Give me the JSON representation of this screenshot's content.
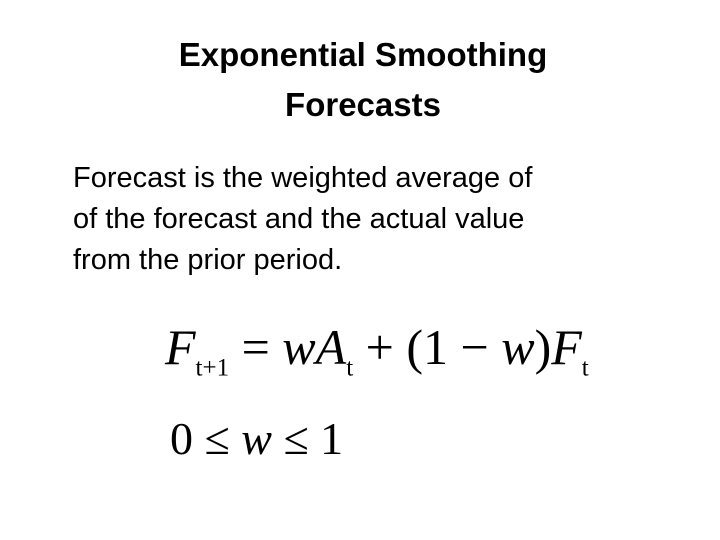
{
  "title": {
    "lines": [
      "Exponential Smoothing",
      "Forecasts"
    ]
  },
  "body": {
    "lines": [
      "Forecast is the weighted average of",
      "of the forecast and the actual value",
      "from the prior period."
    ]
  },
  "formula": {
    "tokens": [
      {
        "text": "F",
        "style": "italic"
      },
      {
        "text": "t+1",
        "style": "subscript"
      },
      {
        "text": " = ",
        "style": "upright"
      },
      {
        "text": "wA",
        "style": "italic"
      },
      {
        "text": "t",
        "style": "subscript"
      },
      {
        "text": " + (1 − ",
        "style": "upright"
      },
      {
        "text": "w",
        "style": "italic"
      },
      {
        "text": ")",
        "style": "upright"
      },
      {
        "text": "F",
        "style": "italic"
      },
      {
        "text": "t",
        "style": "subscript"
      }
    ]
  },
  "constraint": {
    "tokens": [
      {
        "text": "0 ≤ ",
        "style": "upright"
      },
      {
        "text": "w",
        "style": "italic"
      },
      {
        "text": " ≤ 1",
        "style": "upright"
      }
    ]
  }
}
